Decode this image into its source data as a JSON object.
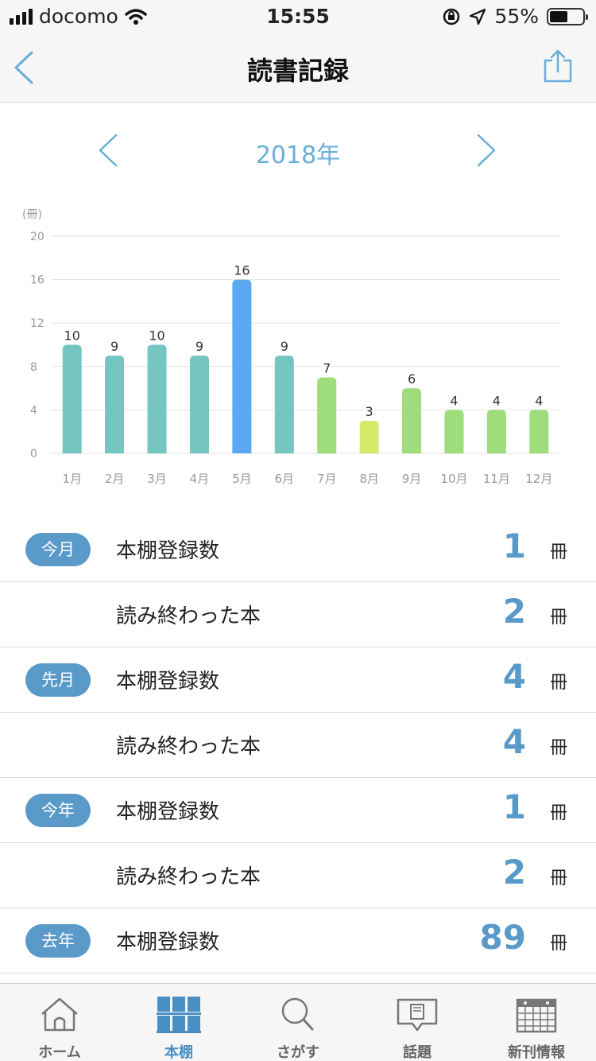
{
  "status_bar": {
    "carrier": "docomo",
    "time": "15:55",
    "battery": "55%",
    "battery_level": 0.55
  },
  "nav": {
    "title": "読書記録"
  },
  "year_selector": {
    "year_label": "2018年"
  },
  "chart_data": {
    "type": "bar",
    "unit_label": "(冊)",
    "categories": [
      "1月",
      "2月",
      "3月",
      "4月",
      "5月",
      "6月",
      "7月",
      "8月",
      "9月",
      "10月",
      "11月",
      "12月"
    ],
    "values": [
      10,
      9,
      10,
      9,
      16,
      9,
      7,
      3,
      6,
      4,
      4,
      4
    ],
    "ylim": [
      0,
      20
    ],
    "yticks": [
      0,
      4,
      8,
      12,
      16,
      20
    ],
    "grid": true,
    "colors": [
      "#75c5c0",
      "#75c5c0",
      "#75c5c0",
      "#75c5c0",
      "#5aa8f0",
      "#75c5c0",
      "#9edc7c",
      "#d4ea68",
      "#9edc7c",
      "#9edc7c",
      "#9edc7c",
      "#9edc7c"
    ]
  },
  "stats": [
    {
      "badge": "今月",
      "label": "本棚登録数",
      "value": "1",
      "unit": "冊"
    },
    {
      "badge": "",
      "label": "読み終わった本",
      "value": "2",
      "unit": "冊"
    },
    {
      "badge": "先月",
      "label": "本棚登録数",
      "value": "4",
      "unit": "冊"
    },
    {
      "badge": "",
      "label": "読み終わった本",
      "value": "4",
      "unit": "冊"
    },
    {
      "badge": "今年",
      "label": "本棚登録数",
      "value": "1",
      "unit": "冊"
    },
    {
      "badge": "",
      "label": "読み終わった本",
      "value": "2",
      "unit": "冊"
    },
    {
      "badge": "去年",
      "label": "本棚登録数",
      "value": "89",
      "unit": "冊"
    }
  ],
  "tabs": [
    {
      "label": "ホーム",
      "icon": "home-icon",
      "active": false
    },
    {
      "label": "本棚",
      "icon": "bookshelf-icon",
      "active": true
    },
    {
      "label": "さがす",
      "icon": "search-icon",
      "active": false
    },
    {
      "label": "話題",
      "icon": "topics-icon",
      "active": false
    },
    {
      "label": "新刊情報",
      "icon": "calendar-icon",
      "active": false
    }
  ],
  "colors": {
    "accent": "#5a9ac9",
    "year_text": "#6aaed8",
    "nav_icon": "#6aaed8"
  }
}
